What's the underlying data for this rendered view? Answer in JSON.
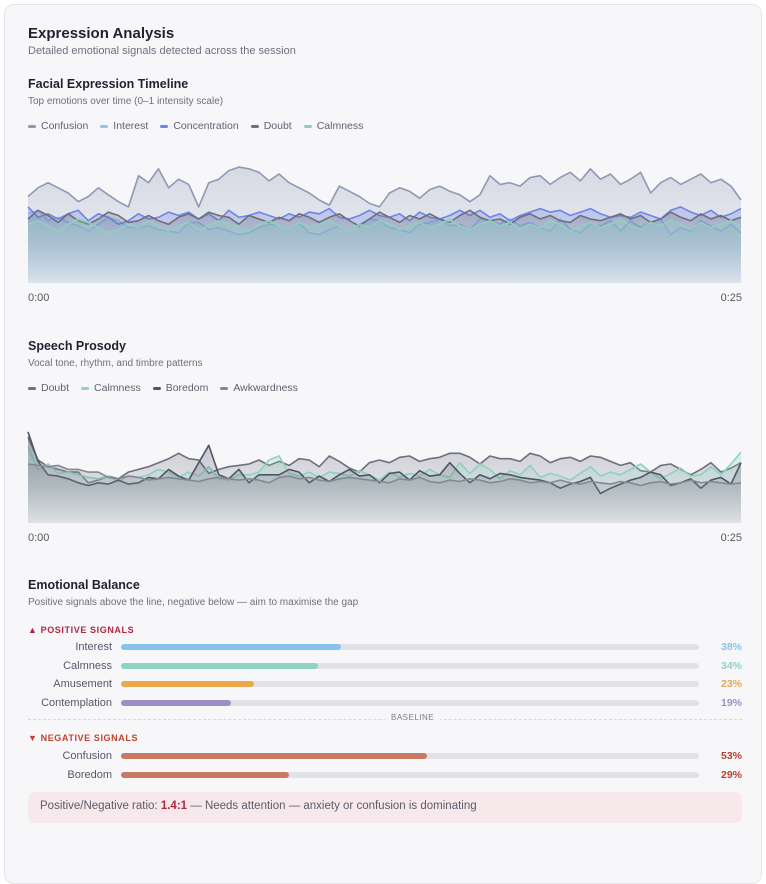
{
  "header": {
    "title": "Expression Analysis",
    "subtitle": "Detailed emotional signals detected across the session"
  },
  "chart_data": [
    {
      "type": "area",
      "title": "Facial Expression Timeline",
      "subtitle": "Top emotions over time (0–1 intensity scale)",
      "x_start_label": "0:00",
      "x_end_label": "0:25",
      "ylim": [
        0,
        1
      ],
      "legend_position": "top-left",
      "series": [
        {
          "name": "Confusion",
          "color": "#8e99b3",
          "values": [
            0.5,
            0.55,
            0.58,
            0.55,
            0.52,
            0.47,
            0.5,
            0.55,
            0.51,
            0.47,
            0.44,
            0.62,
            0.58,
            0.66,
            0.55,
            0.6,
            0.57,
            0.44,
            0.58,
            0.6,
            0.65,
            0.67,
            0.66,
            0.64,
            0.59,
            0.63,
            0.58,
            0.55,
            0.52,
            0.48,
            0.45,
            0.56,
            0.53,
            0.5,
            0.46,
            0.44,
            0.52,
            0.55,
            0.53,
            0.49,
            0.54,
            0.56,
            0.53,
            0.51,
            0.47,
            0.51,
            0.62,
            0.57,
            0.58,
            0.56,
            0.61,
            0.62,
            0.57,
            0.61,
            0.64,
            0.59,
            0.66,
            0.6,
            0.63,
            0.57,
            0.6,
            0.64,
            0.52,
            0.58,
            0.61,
            0.57,
            0.6,
            0.63,
            0.58,
            0.6,
            0.56,
            0.48
          ]
        },
        {
          "name": "Interest",
          "color": "#8cc4ef",
          "values": [
            0.4,
            0.42,
            0.36,
            0.38,
            0.35,
            0.33,
            0.3,
            0.34,
            0.38,
            0.36,
            0.32,
            0.32,
            0.33,
            0.31,
            0.3,
            0.29,
            0.35,
            0.35,
            0.31,
            0.32,
            0.3,
            0.28,
            0.29,
            0.32,
            0.34,
            0.33,
            0.31,
            0.35,
            0.29,
            0.28,
            0.31,
            0.33,
            0.3,
            0.34,
            0.37,
            0.36,
            0.32,
            0.31,
            0.29,
            0.34,
            0.35,
            0.37,
            0.33,
            0.34,
            0.31,
            0.37,
            0.36,
            0.34,
            0.37,
            0.33,
            0.35,
            0.32,
            0.3,
            0.37,
            0.31,
            0.29,
            0.34,
            0.33,
            0.36,
            0.3,
            0.36,
            0.32,
            0.35,
            0.37,
            0.28,
            0.32,
            0.3,
            0.36,
            0.33,
            0.3,
            0.34,
            0.29
          ]
        },
        {
          "name": "Concentration",
          "color": "#6f84e6",
          "values": [
            0.44,
            0.38,
            0.4,
            0.37,
            0.4,
            0.42,
            0.36,
            0.4,
            0.38,
            0.34,
            0.36,
            0.4,
            0.37,
            0.38,
            0.41,
            0.39,
            0.41,
            0.37,
            0.4,
            0.36,
            0.42,
            0.38,
            0.39,
            0.41,
            0.39,
            0.37,
            0.4,
            0.38,
            0.41,
            0.4,
            0.43,
            0.38,
            0.37,
            0.39,
            0.42,
            0.39,
            0.38,
            0.4,
            0.36,
            0.41,
            0.38,
            0.37,
            0.39,
            0.42,
            0.39,
            0.42,
            0.38,
            0.4,
            0.36,
            0.39,
            0.41,
            0.43,
            0.41,
            0.42,
            0.39,
            0.41,
            0.43,
            0.4,
            0.38,
            0.39,
            0.38,
            0.41,
            0.39,
            0.37,
            0.42,
            0.44,
            0.41,
            0.39,
            0.42,
            0.38,
            0.4,
            0.43
          ]
        },
        {
          "name": "Doubt",
          "color": "#6c6f7d",
          "values": [
            0.37,
            0.42,
            0.39,
            0.35,
            0.4,
            0.36,
            0.34,
            0.37,
            0.41,
            0.39,
            0.35,
            0.36,
            0.39,
            0.36,
            0.34,
            0.38,
            0.4,
            0.37,
            0.41,
            0.39,
            0.38,
            0.34,
            0.39,
            0.37,
            0.35,
            0.38,
            0.36,
            0.4,
            0.38,
            0.35,
            0.38,
            0.4,
            0.36,
            0.33,
            0.37,
            0.41,
            0.38,
            0.35,
            0.39,
            0.37,
            0.4,
            0.37,
            0.35,
            0.39,
            0.42,
            0.38,
            0.36,
            0.37,
            0.34,
            0.38,
            0.4,
            0.37,
            0.39,
            0.36,
            0.35,
            0.39,
            0.37,
            0.36,
            0.38,
            0.4,
            0.37,
            0.39,
            0.35,
            0.37,
            0.41,
            0.38,
            0.36,
            0.4,
            0.37,
            0.39,
            0.36,
            0.38
          ]
        },
        {
          "name": "Calmness",
          "color": "#8fd1bd",
          "values": [
            0.34,
            0.36,
            0.33,
            0.3,
            0.34,
            0.37,
            0.35,
            0.32,
            0.29,
            0.31,
            0.34,
            0.32,
            0.36,
            0.33,
            0.3,
            0.33,
            0.35,
            0.31,
            0.33,
            0.36,
            0.34,
            0.32,
            0.3,
            0.34,
            0.36,
            0.33,
            0.31,
            0.35,
            0.32,
            0.34,
            0.36,
            0.33,
            0.3,
            0.34,
            0.32,
            0.36,
            0.34,
            0.31,
            0.33,
            0.35,
            0.32,
            0.34,
            0.37,
            0.33,
            0.31,
            0.34,
            0.36,
            0.33,
            0.35,
            0.31,
            0.34,
            0.32,
            0.36,
            0.34,
            0.3,
            0.33,
            0.35,
            0.32,
            0.34,
            0.37,
            0.33,
            0.31,
            0.35,
            0.33,
            0.36,
            0.34,
            0.31,
            0.35,
            0.32,
            0.34,
            0.36,
            0.33
          ]
        }
      ]
    },
    {
      "type": "area",
      "title": "Speech Prosody",
      "subtitle": "Vocal tone, rhythm, and timbre patterns",
      "x_start_label": "0:00",
      "x_end_label": "0:25",
      "ylim": [
        0,
        1
      ],
      "legend_position": "top-left",
      "series": [
        {
          "name": "Doubt",
          "color": "#6c6f7d",
          "values": [
            0.64,
            0.47,
            0.42,
            0.4,
            0.38,
            0.38,
            0.3,
            0.32,
            0.35,
            0.33,
            0.38,
            0.4,
            0.42,
            0.45,
            0.48,
            0.52,
            0.48,
            0.47,
            0.37,
            0.4,
            0.42,
            0.43,
            0.44,
            0.47,
            0.43,
            0.46,
            0.43,
            0.48,
            0.47,
            0.42,
            0.5,
            0.46,
            0.41,
            0.38,
            0.45,
            0.47,
            0.45,
            0.49,
            0.5,
            0.46,
            0.48,
            0.49,
            0.52,
            0.52,
            0.49,
            0.44,
            0.5,
            0.48,
            0.48,
            0.46,
            0.52,
            0.5,
            0.45,
            0.48,
            0.49,
            0.46,
            0.5,
            0.49,
            0.46,
            0.43,
            0.45,
            0.39,
            0.38,
            0.43,
            0.44,
            0.4,
            0.36,
            0.4,
            0.45,
            0.38,
            0.41,
            0.45
          ]
        },
        {
          "name": "Calmness",
          "color": "#8fd1bd",
          "values": [
            0.57,
            0.4,
            0.44,
            0.37,
            0.38,
            0.36,
            0.34,
            0.33,
            0.35,
            0.31,
            0.35,
            0.34,
            0.36,
            0.4,
            0.38,
            0.34,
            0.38,
            0.35,
            0.42,
            0.33,
            0.32,
            0.36,
            0.36,
            0.38,
            0.47,
            0.5,
            0.37,
            0.35,
            0.38,
            0.34,
            0.38,
            0.37,
            0.35,
            0.39,
            0.36,
            0.32,
            0.38,
            0.34,
            0.37,
            0.35,
            0.4,
            0.36,
            0.34,
            0.45,
            0.37,
            0.44,
            0.4,
            0.33,
            0.39,
            0.36,
            0.43,
            0.34,
            0.37,
            0.35,
            0.32,
            0.37,
            0.42,
            0.35,
            0.38,
            0.36,
            0.4,
            0.44,
            0.38,
            0.33,
            0.37,
            0.41,
            0.35,
            0.36,
            0.42,
            0.36,
            0.44,
            0.53
          ]
        },
        {
          "name": "Boredom",
          "color": "#4f5566",
          "values": [
            0.68,
            0.46,
            0.36,
            0.35,
            0.33,
            0.3,
            0.28,
            0.3,
            0.29,
            0.32,
            0.29,
            0.3,
            0.34,
            0.33,
            0.4,
            0.35,
            0.32,
            0.45,
            0.58,
            0.36,
            0.33,
            0.4,
            0.3,
            0.36,
            0.36,
            0.36,
            0.4,
            0.38,
            0.3,
            0.35,
            0.31,
            0.36,
            0.4,
            0.35,
            0.36,
            0.3,
            0.37,
            0.38,
            0.32,
            0.39,
            0.35,
            0.36,
            0.45,
            0.37,
            0.3,
            0.36,
            0.33,
            0.37,
            0.36,
            0.34,
            0.33,
            0.32,
            0.3,
            0.26,
            0.29,
            0.31,
            0.34,
            0.22,
            0.26,
            0.29,
            0.32,
            0.34,
            0.38,
            0.36,
            0.28,
            0.3,
            0.33,
            0.26,
            0.32,
            0.34,
            0.29,
            0.45
          ]
        },
        {
          "name": "Awkwardness",
          "color": "#858894",
          "values": [
            0.44,
            0.43,
            0.42,
            0.43,
            0.4,
            0.4,
            0.38,
            0.38,
            0.34,
            0.33,
            0.35,
            0.34,
            0.32,
            0.33,
            0.34,
            0.33,
            0.32,
            0.31,
            0.33,
            0.34,
            0.33,
            0.32,
            0.33,
            0.32,
            0.3,
            0.34,
            0.35,
            0.33,
            0.34,
            0.32,
            0.31,
            0.33,
            0.34,
            0.33,
            0.32,
            0.31,
            0.3,
            0.33,
            0.32,
            0.34,
            0.31,
            0.3,
            0.32,
            0.31,
            0.33,
            0.32,
            0.3,
            0.31,
            0.33,
            0.32,
            0.3,
            0.31,
            0.3,
            0.32,
            0.3,
            0.29,
            0.31,
            0.3,
            0.29,
            0.31,
            0.3,
            0.28,
            0.3,
            0.31,
            0.29,
            0.3,
            0.32,
            0.3,
            0.31,
            0.3,
            0.29,
            0.3
          ]
        }
      ]
    },
    {
      "type": "bar",
      "title": "Emotional Balance",
      "subtitle": "Positive signals above the line, negative below — aim to maximise the gap",
      "xlim": [
        0,
        100
      ],
      "positive_label": "▲ POSITIVE SIGNALS",
      "negative_label": "▼ NEGATIVE SIGNALS",
      "baseline_label": "BASELINE",
      "positive": [
        {
          "name": "Interest",
          "value": 38,
          "label": "38%",
          "color": "#86c3ef"
        },
        {
          "name": "Calmness",
          "value": 34,
          "label": "34%",
          "color": "#8fd4bf"
        },
        {
          "name": "Amusement",
          "value": 23,
          "label": "23%",
          "color": "#e9a84e"
        },
        {
          "name": "Contemplation",
          "value": 19,
          "label": "19%",
          "color": "#9d8fc6"
        }
      ],
      "negative": [
        {
          "name": "Confusion",
          "value": 53,
          "label": "53%",
          "color": "#c97a66"
        },
        {
          "name": "Boredom",
          "value": 29,
          "label": "29%",
          "color": "#c97a66"
        }
      ]
    }
  ],
  "colors": {
    "positive_heading": "#b0273f",
    "negative_heading": "#c0442e",
    "negative_value": "#b5402b"
  },
  "summary": {
    "prefix": "Positive/Negative ratio:",
    "ratio": "1.4:1",
    "message": "— Needs attention — anxiety or confusion is dominating"
  }
}
